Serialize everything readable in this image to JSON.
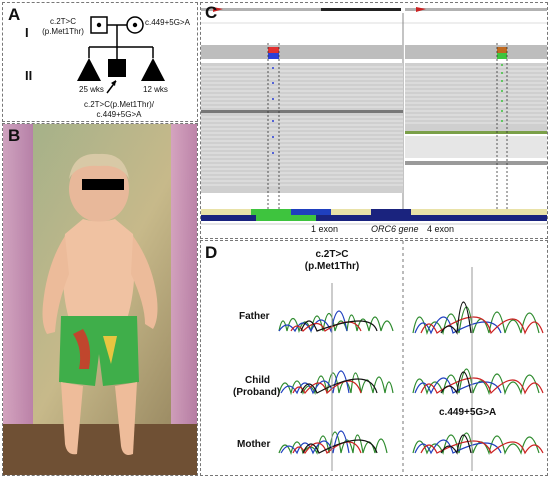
{
  "panelA": {
    "label": "A",
    "gen1": "I",
    "gen2": "II",
    "father_variant": [
      "c.2T>C",
      "(p.Met1Thr)"
    ],
    "mother_variant": "c.449+5G>A",
    "sib1_weeks": "25 wks",
    "sib2_weeks": "12 wks",
    "proband_variant": [
      "c.2T>C(p.Met1Thr)/",
      "c.449+5G>A"
    ]
  },
  "panelB": {
    "label": "B"
  },
  "panelC": {
    "label": "C",
    "exon1_label": "1 exon",
    "gene_label": "ORC6 gene",
    "exon4_label": "4 exon"
  },
  "panelD": {
    "label": "D",
    "variant1": [
      "c.2T>C",
      "(p.Met1Thr)"
    ],
    "variant2": "c.449+5G>A",
    "rows": [
      "Father",
      "Child",
      "(Proband)",
      "Mother"
    ]
  },
  "colors": {
    "A": "#2e8b2e",
    "C": "#1f3fbf",
    "G": "#111111",
    "T": "#cc2222",
    "igv_gray": "#cfcfcf",
    "highlight_red": "#e23030",
    "highlight_blue": "#2c3fd8",
    "highlight_green": "#3ec43e"
  }
}
